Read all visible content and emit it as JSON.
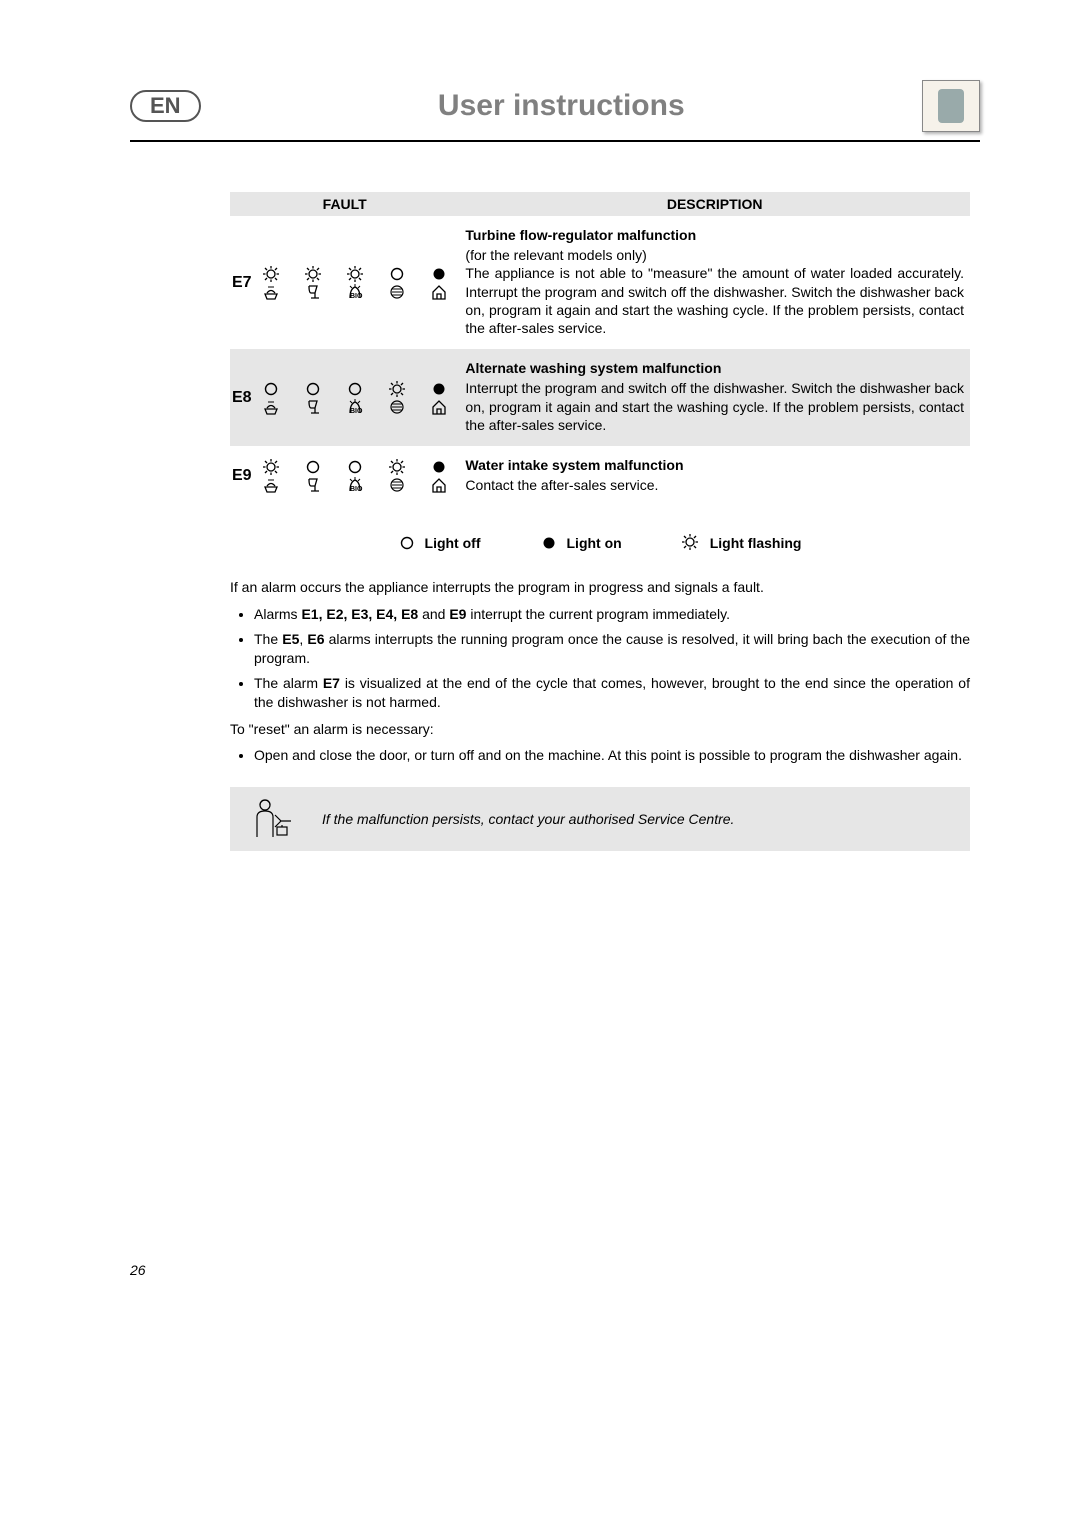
{
  "header": {
    "lang_badge": "EN",
    "title": "User instructions"
  },
  "table": {
    "header_fault": "FAULT",
    "header_desc": "DESCRIPTION",
    "rows": [
      {
        "code": "E7",
        "shaded": false,
        "title": "Turbine flow-regulator malfunction",
        "subtitle": "(for the relevant models only)",
        "body": "The appliance is not able to \"measure\" the amount of water loaded accurately. Interrupt the program and switch off the dishwasher. Switch the dishwasher back on, program it again and start the washing cycle. If the problem persists, contact the after-sales service.",
        "lights": [
          "flash",
          "flash",
          "flash",
          "off",
          "on"
        ]
      },
      {
        "code": "E8",
        "shaded": true,
        "title": "Alternate washing system malfunction",
        "subtitle": "",
        "body": "Interrupt the program and switch off the dishwasher. Switch the dishwasher back on, program it again and start the washing cycle. If the problem persists, contact the after-sales service.",
        "lights": [
          "off",
          "off",
          "off",
          "flash",
          "on"
        ]
      },
      {
        "code": "E9",
        "shaded": false,
        "title": "Water intake system malfunction",
        "subtitle": "",
        "body": "Contact the after-sales service.",
        "lights": [
          "flash",
          "off",
          "off",
          "flash",
          "on"
        ]
      }
    ]
  },
  "legend": {
    "off": "Light off",
    "on": "Light on",
    "flash": "Light flashing"
  },
  "paragraphs": {
    "intro": "If an alarm occurs the appliance interrupts the program in progress and signals a fault.",
    "b1_pre": "Alarms ",
    "b1_bold": "E1, E2, E3, E4, E8",
    "b1_mid": " and ",
    "b1_bold2": "E9",
    "b1_post": " interrupt the current program immediately.",
    "b2_pre": "The ",
    "b2_bold": "E5",
    "b2_mid": ", ",
    "b2_bold2": "E6",
    "b2_post": " alarms interrupts the running program once the cause is resolved, it will bring bach the execution of the program.",
    "b3_pre": "The alarm ",
    "b3_bold": "E7",
    "b3_post": " is visualized at the end of the cycle that comes, however, brought to the end since the operation of the dishwasher is not harmed.",
    "reset": "To \"reset\" an alarm is necessary:",
    "b4": "Open and close the door, or turn off and on the machine. At this point is possible to program the dishwasher again."
  },
  "note": "If the malfunction persists, contact your authorised Service Centre.",
  "page_number": "26",
  "colors": {
    "shade": "#e6e6e6",
    "title_grey": "#808080"
  }
}
